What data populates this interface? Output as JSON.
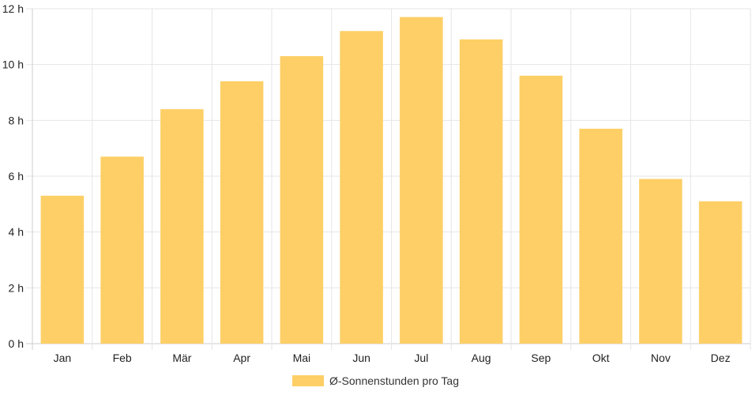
{
  "chart_data": {
    "type": "bar",
    "title": "",
    "xlabel": "",
    "ylabel": "",
    "categories": [
      "Jan",
      "Feb",
      "Mär",
      "Apr",
      "Mai",
      "Jun",
      "Jul",
      "Aug",
      "Sep",
      "Okt",
      "Nov",
      "Dez"
    ],
    "series": [
      {
        "name": "Ø-Sonnenstunden pro Tag",
        "values": [
          5.3,
          6.7,
          8.4,
          9.4,
          10.3,
          11.2,
          11.7,
          10.9,
          9.6,
          7.7,
          5.9,
          5.1
        ],
        "color": "#fdcf66"
      }
    ],
    "ylim": [
      0,
      12
    ],
    "yticks": [
      0,
      2,
      4,
      6,
      8,
      10,
      12
    ],
    "ytick_suffix": " h",
    "grid": true,
    "legend_position": "bottom",
    "gridline_color": "#e6e6e6",
    "axis_color": "#cccccc"
  }
}
